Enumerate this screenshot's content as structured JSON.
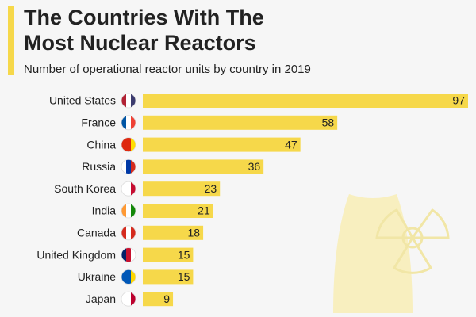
{
  "chart_data": {
    "type": "bar",
    "orientation": "horizontal",
    "title": [
      "The Countries With The",
      "Most Nuclear Reactors"
    ],
    "subtitle": "Number of operational reactor units by country in 2019",
    "categories": [
      "United States",
      "France",
      "China",
      "Russia",
      "South Korea",
      "India",
      "Canada",
      "United Kingdom",
      "Ukraine",
      "Japan"
    ],
    "values": [
      97,
      58,
      47,
      36,
      23,
      21,
      18,
      15,
      15,
      9
    ],
    "color": "#f6d84a"
  }
}
